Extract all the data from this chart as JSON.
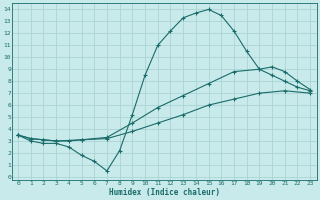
{
  "xlabel": "Humidex (Indice chaleur)",
  "bg_color": "#c8eaea",
  "grid_color": "#acd4d4",
  "line_color": "#1a6b6b",
  "xlim_min": -0.5,
  "xlim_max": 23.5,
  "ylim_min": -0.3,
  "ylim_max": 14.5,
  "xticks": [
    0,
    1,
    2,
    3,
    4,
    5,
    6,
    7,
    8,
    9,
    10,
    11,
    12,
    13,
    14,
    15,
    16,
    17,
    18,
    19,
    20,
    21,
    22,
    23
  ],
  "yticks": [
    0,
    1,
    2,
    3,
    4,
    5,
    6,
    7,
    8,
    9,
    10,
    11,
    12,
    13,
    14
  ],
  "line1_x": [
    0,
    1,
    2,
    3,
    4,
    5,
    6,
    7,
    8,
    9,
    10,
    11,
    12,
    13,
    14,
    15,
    16,
    17,
    18,
    19,
    20,
    21,
    22,
    23
  ],
  "line1_y": [
    3.5,
    3.0,
    2.8,
    2.8,
    2.5,
    1.8,
    1.3,
    0.5,
    2.2,
    5.2,
    8.5,
    11.0,
    12.2,
    13.3,
    13.7,
    14.0,
    13.5,
    12.2,
    10.5,
    9.0,
    8.5,
    8.0,
    7.5,
    7.2
  ],
  "line2_x": [
    0,
    1,
    2,
    3,
    4,
    5,
    7,
    9,
    11,
    13,
    15,
    17,
    19,
    20,
    21,
    22,
    23
  ],
  "line2_y": [
    3.5,
    3.2,
    3.1,
    3.0,
    3.0,
    3.1,
    3.3,
    4.5,
    5.8,
    6.8,
    7.8,
    8.8,
    9.0,
    9.2,
    8.8,
    8.0,
    7.3
  ],
  "line3_x": [
    0,
    1,
    2,
    3,
    5,
    7,
    9,
    11,
    13,
    15,
    17,
    19,
    21,
    23
  ],
  "line3_y": [
    3.5,
    3.2,
    3.1,
    3.0,
    3.1,
    3.2,
    3.8,
    4.5,
    5.2,
    6.0,
    6.5,
    7.0,
    7.2,
    7.0
  ]
}
